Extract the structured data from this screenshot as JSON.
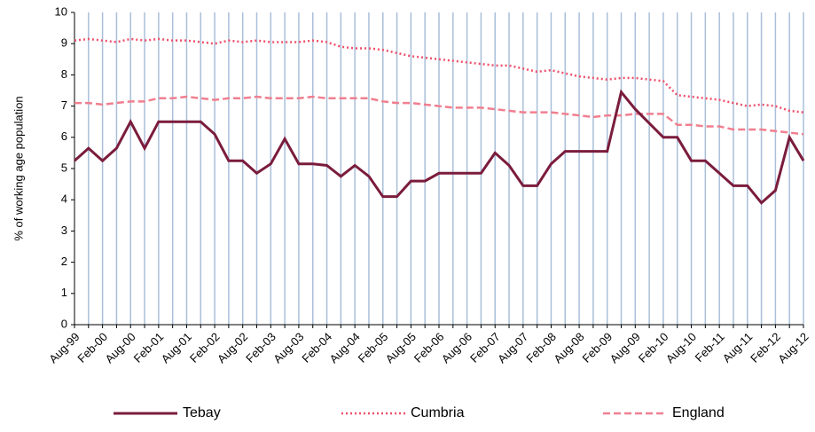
{
  "chart_data": {
    "type": "line",
    "y_label": "% of working age population",
    "categories": [
      "Aug-99",
      null,
      "Feb-00",
      null,
      "Aug-00",
      null,
      "Feb-01",
      null,
      "Aug-01",
      null,
      "Feb-02",
      null,
      "Aug-02",
      null,
      "Feb-03",
      null,
      "Aug-03",
      null,
      "Feb-04",
      null,
      "Aug-04",
      null,
      "Feb-05",
      null,
      "Aug-05",
      null,
      "Feb-06",
      null,
      "Aug-06",
      null,
      "Feb-07",
      null,
      "Aug-07",
      null,
      "Feb-08",
      null,
      "Aug-08",
      null,
      "Feb-09",
      null,
      "Aug-09",
      null,
      "Feb-10",
      null,
      "Aug-10",
      null,
      "Feb-11",
      null,
      "Aug-11",
      null,
      "Feb-12",
      null,
      "Aug-12"
    ],
    "series": [
      {
        "name": "Tebay",
        "color": "#7b1c3c",
        "style": "solid",
        "values": [
          5.25,
          5.65,
          5.25,
          5.65,
          6.5,
          5.65,
          6.5,
          6.5,
          6.5,
          6.5,
          6.1,
          5.25,
          5.25,
          4.85,
          5.15,
          5.95,
          5.15,
          5.15,
          5.1,
          4.75,
          5.1,
          4.75,
          4.1,
          4.1,
          4.6,
          4.6,
          4.85,
          4.85,
          4.85,
          4.85,
          5.5,
          5.1,
          4.45,
          4.45,
          5.15,
          5.55,
          5.55,
          5.55,
          5.55,
          7.45,
          6.9,
          6.45,
          6.0,
          6.0,
          5.25,
          5.25,
          4.85,
          4.45,
          4.45,
          3.9,
          4.3,
          6.0,
          5.25
        ]
      },
      {
        "name": "Cumbria",
        "color": "#f0506a",
        "style": "dotted",
        "values": [
          9.1,
          9.15,
          9.1,
          9.05,
          9.15,
          9.1,
          9.15,
          9.1,
          9.1,
          9.05,
          9.0,
          9.1,
          9.05,
          9.1,
          9.05,
          9.05,
          9.05,
          9.1,
          9.05,
          8.9,
          8.85,
          8.85,
          8.8,
          8.7,
          8.6,
          8.55,
          8.5,
          8.45,
          8.4,
          8.35,
          8.3,
          8.3,
          8.2,
          8.1,
          8.15,
          8.05,
          7.95,
          7.9,
          7.85,
          7.9,
          7.9,
          7.85,
          7.8,
          7.35,
          7.3,
          7.25,
          7.2,
          7.1,
          7.0,
          7.05,
          7.0,
          6.85,
          6.8
        ]
      },
      {
        "name": "England",
        "color": "#f07f8f",
        "style": "dashed",
        "values": [
          7.1,
          7.1,
          7.05,
          7.1,
          7.15,
          7.15,
          7.25,
          7.25,
          7.3,
          7.25,
          7.2,
          7.25,
          7.25,
          7.3,
          7.25,
          7.25,
          7.25,
          7.3,
          7.25,
          7.25,
          7.25,
          7.25,
          7.15,
          7.1,
          7.1,
          7.05,
          7.0,
          6.95,
          6.95,
          6.95,
          6.9,
          6.85,
          6.8,
          6.8,
          6.8,
          6.75,
          6.7,
          6.65,
          6.7,
          6.7,
          6.75,
          6.75,
          6.75,
          6.4,
          6.4,
          6.35,
          6.35,
          6.25,
          6.25,
          6.25,
          6.2,
          6.15,
          6.1
        ]
      }
    ],
    "ylim": [
      0,
      10
    ],
    "yticks": [
      0,
      1,
      2,
      3,
      4,
      5,
      6,
      7,
      8,
      9,
      10
    ],
    "grid_color": "#a9bfd9",
    "legend": "bottom"
  }
}
